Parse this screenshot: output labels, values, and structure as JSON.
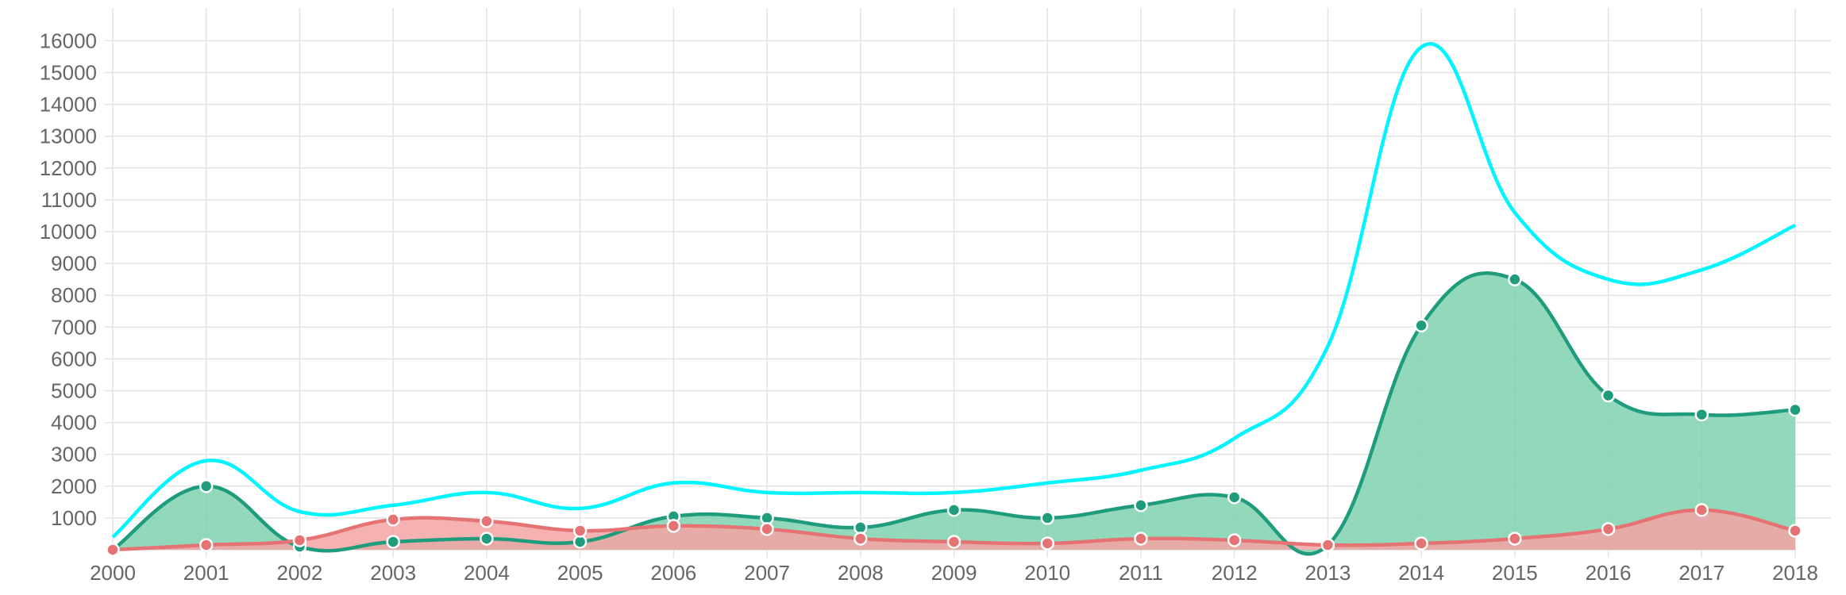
{
  "chart_data": {
    "type": "area",
    "title": "",
    "xlabel": "",
    "ylabel": "",
    "x": [
      "2000",
      "2001",
      "2002",
      "2003",
      "2004",
      "2005",
      "2006",
      "2007",
      "2008",
      "2009",
      "2010",
      "2011",
      "2012",
      "2013",
      "2014",
      "2015",
      "2016",
      "2017",
      "2018"
    ],
    "y_ticks": [
      "1000",
      "2000",
      "3000",
      "4000",
      "5000",
      "6000",
      "7000",
      "8000",
      "9000",
      "10000",
      "11000",
      "12000",
      "13000",
      "14000",
      "15000",
      "16000"
    ],
    "ylim": [
      0,
      16000
    ],
    "grid": true,
    "legend": "none",
    "series": [
      {
        "color": "#00F5FF",
        "fill": false,
        "points": false,
        "values": [
          400,
          2800,
          1200,
          1400,
          1800,
          1300,
          2100,
          1800,
          1800,
          1800,
          2100,
          2500,
          3500,
          6400,
          15800,
          10600,
          8500,
          8800,
          10200
        ]
      },
      {
        "color": "#1E9C7C",
        "fill": "#7FD1AE",
        "points": true,
        "values": [
          0,
          2000,
          100,
          250,
          350,
          250,
          1050,
          1000,
          700,
          1250,
          1000,
          1400,
          1650,
          150,
          7050,
          8500,
          4850,
          4250,
          4400
        ]
      },
      {
        "color": "#E57373",
        "fill": "#F5A3A3",
        "points": true,
        "values": [
          0,
          150,
          300,
          950,
          900,
          600,
          750,
          650,
          350,
          250,
          200,
          350,
          300,
          150,
          200,
          350,
          650,
          1250,
          600
        ]
      }
    ]
  }
}
